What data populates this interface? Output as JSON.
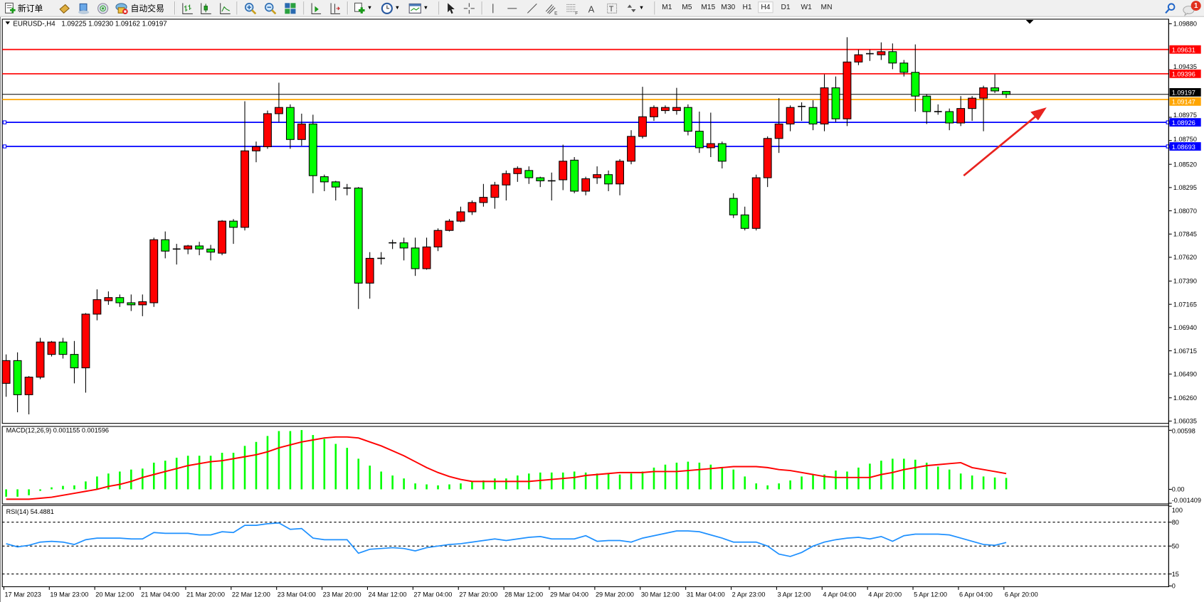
{
  "toolbar": {
    "new_order_label": "新订单",
    "auto_trade_label": "自动交易",
    "timeframes": [
      "M1",
      "M5",
      "M15",
      "M30",
      "H1",
      "H4",
      "D1",
      "W1",
      "MN"
    ],
    "active_timeframe": "H4",
    "notification_count": "1",
    "icons": [
      "new-order-icon",
      "history-icon",
      "terminal-icon",
      "signals-icon",
      "auto-trading-icon",
      "bar-chart-icon",
      "candlestick-icon",
      "line-chart-icon",
      "zoom-in-icon",
      "zoom-out-icon",
      "tile-windows-icon",
      "auto-scroll-icon",
      "chart-shift-icon",
      "indicators-icon",
      "periods-icon",
      "templates-icon",
      "cursor-icon",
      "crosshair-icon",
      "vertical-line-icon",
      "horizontal-line-icon",
      "trendline-icon",
      "equidistant-channel-icon",
      "fibonacci-icon",
      "text-icon",
      "text-label-icon",
      "arrows-icon",
      "search-icon",
      "chat-icon"
    ]
  },
  "chart_header": {
    "symbol": "EURUSD-,H4",
    "ohlc": "1.09225 1.09230 1.09162 1.09197"
  },
  "colors": {
    "bull": "#ff0000",
    "bear": "#00ff00",
    "resistance": "#ff0000",
    "support": "#0000ff",
    "orange_line": "#ffa500",
    "macd_hist": "#00ff00",
    "macd_signal": "#ff0000",
    "rsi": "#1e90ff",
    "arrow": "#e8231f"
  },
  "chart_data": [
    {
      "type": "candlestick",
      "title": "EURUSD-,H4",
      "ylim": [
        1.06035,
        1.0988
      ],
      "y_tick_labels": [
        "1.09880",
        "1.09435",
        "1.08975",
        "1.08750",
        "1.08520",
        "1.08295",
        "1.08070",
        "1.07845",
        "1.07620",
        "1.07390",
        "1.07165",
        "1.06940",
        "1.06715",
        "1.06490",
        "1.06260",
        "1.06035"
      ],
      "x_tick_labels": [
        "17 Mar 2023",
        "19 Mar 23:00",
        "20 Mar 12:00",
        "21 Mar 04:00",
        "21 Mar 20:00",
        "22 Mar 12:00",
        "23 Mar 04:00",
        "23 Mar 20:00",
        "24 Mar 12:00",
        "27 Mar 04:00",
        "27 Mar 20:00",
        "28 Mar 12:00",
        "29 Mar 04:00",
        "29 Mar 20:00",
        "30 Mar 12:00",
        "31 Mar 04:00",
        "2 Apr 23:00",
        "3 Apr 12:00",
        "4 Apr 04:00",
        "4 Apr 20:00",
        "5 Apr 12:00",
        "6 Apr 04:00",
        "6 Apr 20:00"
      ],
      "x_tick_every_n_bars": 4,
      "ohlc_fields": [
        "open",
        "high",
        "low",
        "close"
      ],
      "ohlc": [
        [
          1.064,
          1.0668,
          1.0627,
          1.0662
        ],
        [
          1.0662,
          1.067,
          1.0612,
          1.0629
        ],
        [
          1.0629,
          1.0647,
          1.061,
          1.0646
        ],
        [
          1.0646,
          1.0684,
          1.0644,
          1.068
        ],
        [
          1.0668,
          1.0681,
          1.0666,
          1.068
        ],
        [
          1.068,
          1.0684,
          1.0664,
          1.0668
        ],
        [
          1.0668,
          1.0681,
          1.064,
          1.0655
        ],
        [
          1.0655,
          1.0708,
          1.0631,
          1.0707
        ],
        [
          1.0707,
          1.0731,
          1.0701,
          1.0721
        ],
        [
          1.072,
          1.0729,
          1.0716,
          1.0723
        ],
        [
          1.0723,
          1.0726,
          1.0714,
          1.0718
        ],
        [
          1.0718,
          1.0726,
          1.071,
          1.0716
        ],
        [
          1.0716,
          1.0726,
          1.0705,
          1.0719
        ],
        [
          1.0718,
          1.0781,
          1.0714,
          1.0779
        ],
        [
          1.0779,
          1.0787,
          1.0761,
          1.0768
        ],
        [
          1.077,
          1.0775,
          1.0755,
          1.0769
        ],
        [
          1.077,
          1.0774,
          1.0765,
          1.0773
        ],
        [
          1.0773,
          1.0777,
          1.0764,
          1.077
        ],
        [
          1.077,
          1.0774,
          1.0759,
          1.0767
        ],
        [
          1.0766,
          1.0798,
          1.0764,
          1.0797
        ],
        [
          1.0797,
          1.0799,
          1.0775,
          1.0791
        ],
        [
          1.0791,
          1.0913,
          1.0788,
          1.0865
        ],
        [
          1.0865,
          1.0874,
          1.0854,
          1.0869
        ],
        [
          1.0869,
          1.0904,
          1.0867,
          1.0901
        ],
        [
          1.0901,
          1.0931,
          1.0893,
          1.0907
        ],
        [
          1.0907,
          1.091,
          1.0867,
          1.0876
        ],
        [
          1.0876,
          1.0901,
          1.087,
          1.0891
        ],
        [
          1.0891,
          1.09,
          1.0824,
          1.0841
        ],
        [
          1.084,
          1.0842,
          1.0826,
          1.0835
        ],
        [
          1.0835,
          1.0836,
          1.0817,
          1.083
        ],
        [
          1.0829,
          1.0833,
          1.0822,
          1.0829
        ],
        [
          1.0829,
          1.083,
          1.0712,
          1.0737
        ],
        [
          1.0737,
          1.0767,
          1.0722,
          1.0761
        ],
        [
          1.0761,
          1.0767,
          1.0755,
          1.0761
        ],
        [
          1.0776,
          1.0779,
          1.077,
          1.0776
        ],
        [
          1.0776,
          1.0781,
          1.0759,
          1.0771
        ],
        [
          1.0771,
          1.0781,
          1.0744,
          1.0751
        ],
        [
          1.0751,
          1.0781,
          1.075,
          1.0772
        ],
        [
          1.0772,
          1.079,
          1.0768,
          1.0788
        ],
        [
          1.0788,
          1.0799,
          1.0787,
          1.0797
        ],
        [
          1.0797,
          1.0811,
          1.0796,
          1.0806
        ],
        [
          1.0806,
          1.0817,
          1.0803,
          1.0815
        ],
        [
          1.0815,
          1.0833,
          1.0811,
          1.082
        ],
        [
          1.082,
          1.0835,
          1.0809,
          1.0832
        ],
        [
          1.0832,
          1.0846,
          1.0817,
          1.0843
        ],
        [
          1.0843,
          1.085,
          1.0835,
          1.0848
        ],
        [
          1.0846,
          1.085,
          1.0833,
          1.0839
        ],
        [
          1.0839,
          1.084,
          1.083,
          1.0836
        ],
        [
          1.0836,
          1.0844,
          1.0817,
          1.0836
        ],
        [
          1.0837,
          1.0871,
          1.0827,
          1.0855
        ],
        [
          1.0856,
          1.0859,
          1.0824,
          1.0826
        ],
        [
          1.0826,
          1.084,
          1.0822,
          1.0838
        ],
        [
          1.0839,
          1.085,
          1.0833,
          1.0842
        ],
        [
          1.0842,
          1.0846,
          1.0826,
          1.0833
        ],
        [
          1.0833,
          1.0857,
          1.0822,
          1.0855
        ],
        [
          1.0855,
          1.0885,
          1.0852,
          1.0879
        ],
        [
          1.0879,
          1.0927,
          1.0877,
          1.0898
        ],
        [
          1.0898,
          1.0909,
          1.0894,
          1.0907
        ],
        [
          1.0904,
          1.0909,
          1.0901,
          1.0907
        ],
        [
          1.0904,
          1.0926,
          1.09,
          1.0907
        ],
        [
          1.0907,
          1.091,
          1.088,
          1.0884
        ],
        [
          1.0884,
          1.0903,
          1.0863,
          1.0868
        ],
        [
          1.0868,
          1.0902,
          1.0859,
          1.0872
        ],
        [
          1.0872,
          1.0874,
          1.0848,
          1.0855
        ],
        [
          1.0819,
          1.0824,
          1.08,
          1.0803
        ],
        [
          1.0803,
          1.0811,
          1.0788,
          1.079
        ],
        [
          1.079,
          1.0842,
          1.0788,
          1.0839
        ],
        [
          1.0839,
          1.0879,
          1.083,
          1.0877
        ],
        [
          1.0877,
          1.0916,
          1.0863,
          1.0891
        ],
        [
          1.0891,
          1.0909,
          1.0884,
          1.0907
        ],
        [
          1.0908,
          1.0912,
          1.0894,
          1.0908
        ],
        [
          1.0907,
          1.0914,
          1.0885,
          1.0891
        ],
        [
          1.0891,
          1.0939,
          1.0884,
          1.0926
        ],
        [
          1.0926,
          1.0937,
          1.0893,
          1.0896
        ],
        [
          1.0896,
          1.0975,
          1.0889,
          1.0951
        ],
        [
          1.0951,
          1.0963,
          1.0948,
          1.0958
        ],
        [
          1.0959,
          1.0963,
          1.0952,
          1.0959
        ],
        [
          1.0958,
          1.097,
          1.0953,
          1.0961
        ],
        [
          1.0961,
          1.0969,
          1.0944,
          1.095
        ],
        [
          1.095,
          1.0953,
          1.0937,
          1.0941
        ],
        [
          1.0941,
          1.0968,
          1.0903,
          1.0918
        ],
        [
          1.0918,
          1.092,
          1.0891,
          1.0903
        ],
        [
          1.0903,
          1.091,
          1.09,
          1.0903
        ],
        [
          1.0903,
          1.0906,
          1.0885,
          1.0892
        ],
        [
          1.0892,
          1.0918,
          1.0889,
          1.0906
        ],
        [
          1.0906,
          1.0918,
          1.0894,
          1.0916
        ],
        [
          1.0916,
          1.0928,
          1.0884,
          1.0926
        ],
        [
          1.0926,
          1.0939,
          1.0921,
          1.0923
        ],
        [
          1.09225,
          1.0923,
          1.09162,
          1.09197
        ]
      ],
      "price_lines": [
        {
          "value": 1.09631,
          "label": "1.09631",
          "color": "#ff0000"
        },
        {
          "value": 1.09396,
          "label": "1.09396",
          "color": "#ff0000"
        },
        {
          "value": 1.09197,
          "label": "1.09197",
          "color": "#000000"
        },
        {
          "value": 1.09147,
          "label": "1.09147",
          "color": "#ffa500"
        },
        {
          "value": 1.08926,
          "label": "1.08926",
          "color": "#0000ff"
        },
        {
          "value": 1.08693,
          "label": "1.08693",
          "color": "#0000ff"
        }
      ],
      "annotation": "red-arrow-up"
    },
    {
      "type": "bar",
      "title": "MACD(12,26,9) 0.001155 0.001596",
      "ylim": [
        -0.001409,
        0.00598
      ],
      "y_tick_labels": [
        "0.00598",
        "0.00",
        "-0.001409"
      ],
      "series": [
        {
          "name": "MACD",
          "type": "bar",
          "values": [
            -0.00075,
            -0.00075,
            -0.0006,
            -0.00016,
            0.0002,
            0.00035,
            0.0004,
            0.0008,
            0.0013,
            0.0016,
            0.0018,
            0.002,
            0.0021,
            0.0027,
            0.0029,
            0.0032,
            0.0034,
            0.0034,
            0.0034,
            0.0037,
            0.0037,
            0.0044,
            0.0048,
            0.0054,
            0.0059,
            0.0059,
            0.006,
            0.0055,
            0.0051,
            0.0046,
            0.0042,
            0.0031,
            0.0024,
            0.0018,
            0.0014,
            0.0011,
            0.0006,
            0.0005,
            0.0004,
            0.0005,
            0.0006,
            0.0008,
            0.0009,
            0.0011,
            0.0011,
            0.0014,
            0.0016,
            0.0017,
            0.0017,
            0.0017,
            0.0018,
            0.0017,
            0.0016,
            0.0016,
            0.0015,
            0.0016,
            0.0018,
            0.0022,
            0.0025,
            0.0027,
            0.0028,
            0.0027,
            0.0025,
            0.0022,
            0.002,
            0.0013,
            0.0006,
            0.0004,
            0.0006,
            0.0009,
            0.0013,
            0.0015,
            0.0015,
            0.0019,
            0.0018,
            0.0022,
            0.0026,
            0.0029,
            0.0031,
            0.0031,
            0.003,
            0.0027,
            0.0023,
            0.002,
            0.0016,
            0.0014,
            0.0013,
            0.0012,
            0.001155
          ]
        },
        {
          "name": "Signal",
          "type": "line",
          "values": [
            -0.001,
            -0.001,
            -0.001,
            -0.0009,
            -0.0008,
            -0.0006,
            -0.0004,
            -0.0002,
            0.0,
            0.0003,
            0.0005,
            0.0008,
            0.0012,
            0.0015,
            0.0018,
            0.0021,
            0.0024,
            0.0026,
            0.0028,
            0.0029,
            0.0031,
            0.0033,
            0.0035,
            0.0038,
            0.0042,
            0.0045,
            0.0048,
            0.005,
            0.0052,
            0.0053,
            0.0053,
            0.0052,
            0.0048,
            0.0044,
            0.0039,
            0.0034,
            0.0028,
            0.0022,
            0.0017,
            0.0013,
            0.001,
            0.0008,
            0.0008,
            0.0008,
            0.0008,
            0.0008,
            0.0008,
            0.0009,
            0.001,
            0.0011,
            0.0012,
            0.0014,
            0.0015,
            0.0016,
            0.0017,
            0.0017,
            0.0017,
            0.0018,
            0.0018,
            0.0018,
            0.0019,
            0.002,
            0.0021,
            0.0022,
            0.0023,
            0.0023,
            0.0023,
            0.0022,
            0.002,
            0.0019,
            0.0017,
            0.0015,
            0.0013,
            0.0012,
            0.0012,
            0.0012,
            0.0012,
            0.0015,
            0.0017,
            0.002,
            0.0022,
            0.0024,
            0.0025,
            0.0026,
            0.0027,
            0.0022,
            0.002,
            0.0018,
            0.001596
          ]
        }
      ]
    },
    {
      "type": "line",
      "title": "RSI(14) 54.4881",
      "ylim": [
        0,
        100
      ],
      "y_tick_labels": [
        "100",
        "80",
        "50",
        "15",
        "0"
      ],
      "levels": [
        80,
        50,
        15
      ],
      "series": [
        {
          "name": "RSI(14)",
          "values": [
            53,
            49,
            51,
            55,
            56,
            55,
            52,
            58,
            60,
            60,
            60,
            59,
            59,
            67,
            66,
            66,
            66,
            64,
            64,
            68,
            67,
            76,
            76,
            78,
            79,
            71,
            72,
            60,
            58,
            58,
            58,
            41,
            46,
            47,
            48,
            47,
            44,
            48,
            50,
            52,
            53,
            55,
            57,
            59,
            57,
            59,
            61,
            62,
            59,
            59,
            59,
            63,
            56,
            57,
            57,
            55,
            60,
            63,
            66,
            69,
            69,
            68,
            64,
            60,
            55,
            55,
            55,
            50,
            40,
            37,
            42,
            50,
            55,
            58,
            60,
            61,
            59,
            62,
            56,
            63,
            65,
            65,
            65,
            64,
            60,
            56,
            52,
            51,
            54.4881
          ]
        }
      ]
    }
  ]
}
